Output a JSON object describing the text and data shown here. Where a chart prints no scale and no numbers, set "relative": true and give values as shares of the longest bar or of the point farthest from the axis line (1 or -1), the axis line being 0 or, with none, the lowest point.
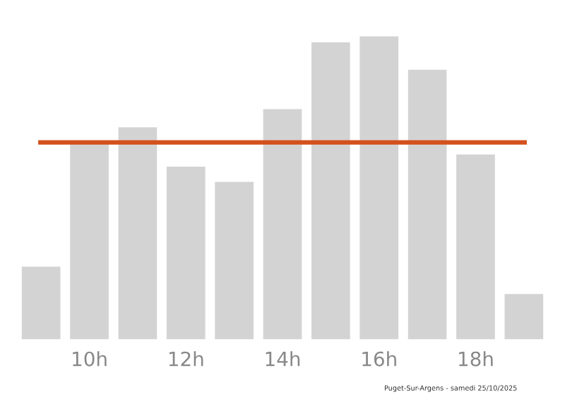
{
  "chart_data": {
    "type": "bar",
    "relative": true,
    "categories": [
      null,
      "10h",
      null,
      "12h",
      null,
      "14h",
      null,
      "16h",
      null,
      "18h",
      null
    ],
    "values": [
      0.24,
      0.65,
      0.7,
      0.57,
      0.52,
      0.76,
      0.98,
      1,
      0.89,
      0.61,
      0.15
    ],
    "color": "#d3d3d3",
    "ref_lines": [
      {
        "axis": "y",
        "value": 0.65,
        "color": "#d4501c"
      }
    ],
    "annotations": [
      "Puget-Sur-Argens - samedi 25/10/2025"
    ],
    "grid": false,
    "legend": false
  }
}
